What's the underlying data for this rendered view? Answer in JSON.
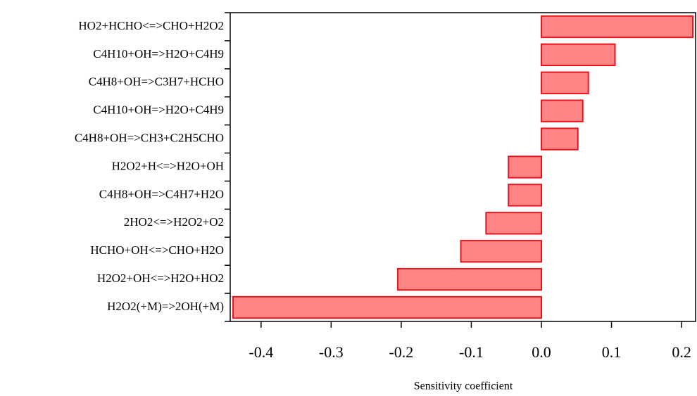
{
  "chart_data": {
    "type": "barh",
    "x_label": "Sensitivity coefficient",
    "categories": [
      "HO2+HCHO<=>CHO+H2O2",
      "C4H10+OH=>H2O+C4H9",
      "C4H8+OH=>C3H7+HCHO",
      "C4H10+OH=>H2O+C4H9",
      "C4H8+OH=>CH3+C2H5CHO",
      "H2O2+H<=>H2O+OH",
      "C4H8+OH=>C4H7+H2O",
      "2HO2<=>H2O2+O2",
      "HCHO+OH<=>CHO+H2O",
      "H2O2+OH<=>H2O+HO2",
      "H2O2(+M)=>2OH(+M)"
    ],
    "values": [
      0.216,
      0.105,
      0.067,
      0.059,
      0.052,
      -0.047,
      -0.047,
      -0.079,
      -0.115,
      -0.205,
      -0.44
    ],
    "color": "#ff8585",
    "edge_color": "#e8141e",
    "xlim": [
      -0.444,
      0.22
    ],
    "xticks": [
      -0.4,
      -0.3,
      -0.2,
      -0.1,
      {
        "value": 0,
        "label": "0.0"
      },
      0.1,
      0.2
    ]
  }
}
